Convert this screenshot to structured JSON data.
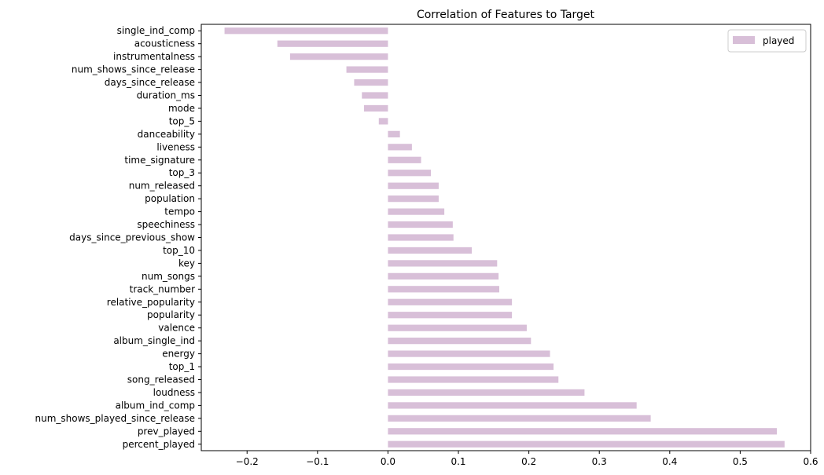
{
  "chart_data": {
    "type": "bar",
    "orientation": "horizontal",
    "title": "Correlation of Features to Target",
    "xlabel": "",
    "ylabel": "",
    "xlim": [
      -0.265,
      0.6
    ],
    "x_ticks": [
      "−0.2",
      "−0.1",
      "0.0",
      "0.1",
      "0.2",
      "0.3",
      "0.4",
      "0.5",
      "0.6"
    ],
    "x_tick_values": [
      -0.2,
      -0.1,
      0.0,
      0.1,
      0.2,
      0.3,
      0.4,
      0.5,
      0.6
    ],
    "grid": false,
    "legend_position": "top-right",
    "bar_color": "#d8bfd8",
    "categories": [
      "single_ind_comp",
      "acousticness",
      "instrumentalness",
      "num_shows_since_release",
      "days_since_release",
      "duration_ms",
      "mode",
      "top_5",
      "danceability",
      "liveness",
      "time_signature",
      "top_3",
      "num_released",
      "population",
      "tempo",
      "speechiness",
      "days_since_previous_show",
      "top_10",
      "key",
      "num_songs",
      "track_number",
      "relative_popularity",
      "popularity",
      "valence",
      "album_single_ind",
      "energy",
      "top_1",
      "song_released",
      "loudness",
      "album_ind_comp",
      "num_shows_played_since_release",
      "prev_played",
      "percent_played"
    ],
    "series": [
      {
        "name": "played",
        "values": [
          -0.232,
          -0.157,
          -0.139,
          -0.059,
          -0.048,
          -0.037,
          -0.034,
          -0.013,
          0.017,
          0.034,
          0.047,
          0.061,
          0.072,
          0.072,
          0.08,
          0.092,
          0.093,
          0.119,
          0.155,
          0.157,
          0.158,
          0.176,
          0.176,
          0.197,
          0.203,
          0.23,
          0.235,
          0.242,
          0.279,
          0.353,
          0.373,
          0.552,
          0.563
        ]
      }
    ]
  }
}
